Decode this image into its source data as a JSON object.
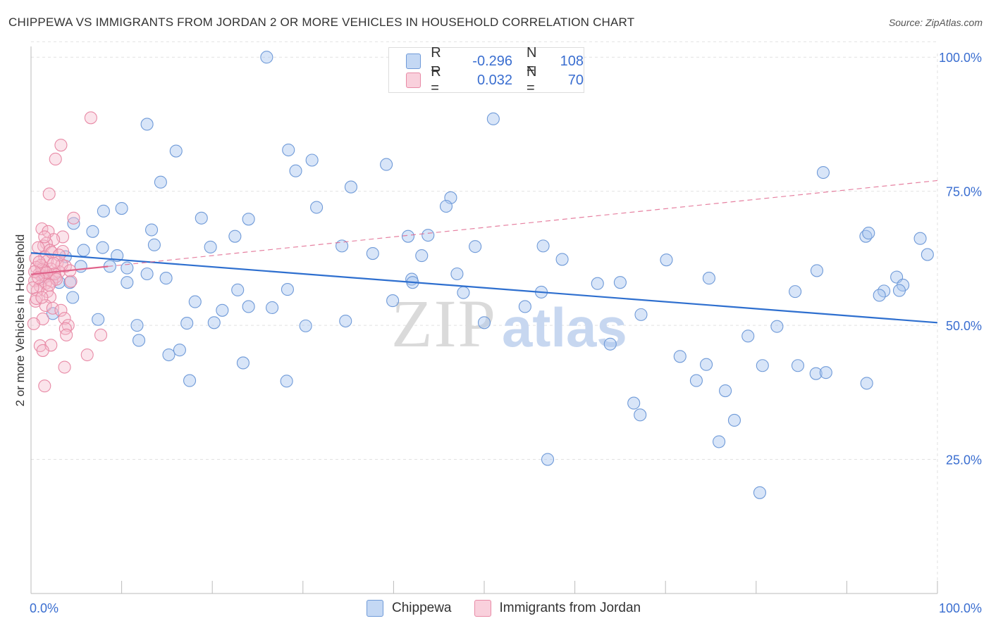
{
  "title": "CHIPPEWA VS IMMIGRANTS FROM JORDAN 2 OR MORE VEHICLES IN HOUSEHOLD CORRELATION CHART",
  "source": "Source: ZipAtlas.com",
  "watermark": {
    "zip": "ZIP",
    "atlas": "atlas"
  },
  "legend": {
    "rows": [
      {
        "r_label": "R =",
        "r_value": "-0.296",
        "n_label": "N =",
        "n_value": "108"
      },
      {
        "r_label": "R =",
        "r_value": "0.032",
        "n_label": "N =",
        "n_value": "70"
      }
    ]
  },
  "colors": {
    "blue_fill": "#a9c6ef",
    "blue_stroke": "#6f9ad8",
    "blue_line": "#2e6fcf",
    "pink_fill": "#f6bccd",
    "pink_stroke": "#e88aa6",
    "pink_line": "#e0628a",
    "axis_text": "#3a6ed0",
    "grid": "#e2e2e2"
  },
  "chart_data": {
    "type": "scatter",
    "title": "CHIPPEWA VS IMMIGRANTS FROM JORDAN 2 OR MORE VEHICLES IN HOUSEHOLD CORRELATION CHART",
    "xlabel": "",
    "ylabel": "2 or more Vehicles in Household",
    "xlim": [
      0,
      100
    ],
    "ylim": [
      0,
      102
    ],
    "x_tick_labels": [
      "0.0%",
      "100.0%"
    ],
    "y_tick_values": [
      25,
      50,
      75,
      100
    ],
    "y_tick_labels": [
      "25.0%",
      "50.0%",
      "75.0%",
      "100.0%"
    ],
    "x_minor_ticks": [
      0,
      10,
      20,
      30,
      40,
      50,
      60,
      70,
      80,
      90,
      100
    ],
    "series": [
      {
        "name": "Chippewa",
        "color": "#a9c6ef",
        "trend": {
          "x": [
            0,
            100
          ],
          "y": [
            63.5,
            50.5
          ],
          "dashed": false
        },
        "points": [
          [
            26,
            100
          ],
          [
            12.8,
            87.5
          ],
          [
            51,
            88.5
          ],
          [
            16,
            82.5
          ],
          [
            28.4,
            82.7
          ],
          [
            31,
            80.8
          ],
          [
            39.2,
            80
          ],
          [
            29.2,
            78.8
          ],
          [
            14.3,
            76.7
          ],
          [
            35.3,
            75.8
          ],
          [
            87.4,
            78.5
          ],
          [
            46.3,
            73.8
          ],
          [
            10,
            71.8
          ],
          [
            8,
            71.3
          ],
          [
            31.5,
            72
          ],
          [
            45.8,
            72.2
          ],
          [
            18.8,
            70
          ],
          [
            24,
            69.8
          ],
          [
            4.7,
            69
          ],
          [
            13.3,
            67.8
          ],
          [
            6.8,
            67.5
          ],
          [
            22.5,
            66.6
          ],
          [
            41.6,
            66.6
          ],
          [
            43.8,
            66.8
          ],
          [
            92.1,
            66.6
          ],
          [
            92.4,
            67.2
          ],
          [
            98.1,
            66.2
          ],
          [
            13.6,
            65
          ],
          [
            19.8,
            64.6
          ],
          [
            34.3,
            64.8
          ],
          [
            49,
            64.7
          ],
          [
            56.5,
            64.8
          ],
          [
            5.8,
            64
          ],
          [
            7.9,
            64.5
          ],
          [
            37.7,
            63.4
          ],
          [
            43.1,
            63
          ],
          [
            98.9,
            63.2
          ],
          [
            9.5,
            63
          ],
          [
            3.8,
            62.8
          ],
          [
            58.6,
            62.3
          ],
          [
            70.1,
            62.2
          ],
          [
            5.5,
            61
          ],
          [
            8.7,
            61
          ],
          [
            10.6,
            60.7
          ],
          [
            1.5,
            59
          ],
          [
            47,
            59.6
          ],
          [
            12.8,
            59.6
          ],
          [
            42,
            58.6
          ],
          [
            74.8,
            58.8
          ],
          [
            42.1,
            58
          ],
          [
            14.9,
            58.8
          ],
          [
            62.5,
            57.8
          ],
          [
            65,
            58
          ],
          [
            95.5,
            59
          ],
          [
            3.1,
            58
          ],
          [
            10.6,
            58
          ],
          [
            96.2,
            57.5
          ],
          [
            4.3,
            58
          ],
          [
            56.3,
            56.2
          ],
          [
            47.7,
            56.1
          ],
          [
            22.8,
            56.6
          ],
          [
            28.3,
            56.7
          ],
          [
            84.3,
            56.3
          ],
          [
            94.1,
            56.4
          ],
          [
            95.8,
            56.5
          ],
          [
            4.6,
            55.2
          ],
          [
            18.1,
            54.4
          ],
          [
            39.9,
            54.6
          ],
          [
            54.5,
            53.5
          ],
          [
            24,
            53.5
          ],
          [
            26.6,
            53.3
          ],
          [
            21.1,
            52.8
          ],
          [
            67.3,
            52
          ],
          [
            2.4,
            52.2
          ],
          [
            7.4,
            51.1
          ],
          [
            17.2,
            50.4
          ],
          [
            20.2,
            50.5
          ],
          [
            34.7,
            50.8
          ],
          [
            50,
            50.5
          ],
          [
            11.7,
            50
          ],
          [
            30.3,
            49.9
          ],
          [
            82.3,
            49.8
          ],
          [
            79.1,
            48
          ],
          [
            11.9,
            47.2
          ],
          [
            63.9,
            46.5
          ],
          [
            16.4,
            45.4
          ],
          [
            15.2,
            44.5
          ],
          [
            71.6,
            44.2
          ],
          [
            80.7,
            42.5
          ],
          [
            23.4,
            43
          ],
          [
            74.5,
            42.7
          ],
          [
            84.6,
            42.5
          ],
          [
            17.5,
            39.7
          ],
          [
            28.2,
            39.6
          ],
          [
            73.4,
            39.7
          ],
          [
            86.6,
            41
          ],
          [
            87.7,
            41.2
          ],
          [
            76.6,
            37.8
          ],
          [
            66.5,
            35.5
          ],
          [
            77.6,
            32.3
          ],
          [
            67.2,
            33.3
          ],
          [
            57,
            25
          ],
          [
            75.9,
            28.3
          ],
          [
            80.4,
            18.8
          ],
          [
            93.6,
            55.6
          ],
          [
            92.2,
            39.2
          ],
          [
            86.7,
            60.2
          ]
        ]
      },
      {
        "name": "Immigrants from Jordan",
        "color": "#f6bccd",
        "trend": {
          "x": [
            0,
            100
          ],
          "y": [
            59.5,
            77
          ],
          "dashed_after": 8.5
        },
        "points": [
          [
            6.6,
            88.7
          ],
          [
            3.3,
            83.6
          ],
          [
            2.7,
            81
          ],
          [
            2,
            74.5
          ],
          [
            4.7,
            70
          ],
          [
            1.2,
            68
          ],
          [
            1.9,
            67.5
          ],
          [
            3.5,
            66.5
          ],
          [
            2.5,
            66
          ],
          [
            1.7,
            65.3
          ],
          [
            1.4,
            64.8
          ],
          [
            0.8,
            64.5
          ],
          [
            2.1,
            64
          ],
          [
            3.5,
            63.8
          ],
          [
            1.5,
            62.8
          ],
          [
            0.5,
            62.5
          ],
          [
            1.8,
            62
          ],
          [
            2.9,
            61.7
          ],
          [
            1.1,
            61.2
          ],
          [
            3.8,
            61
          ],
          [
            0.6,
            60.8
          ],
          [
            2.2,
            60.5
          ],
          [
            1.4,
            60.2
          ],
          [
            3.1,
            60
          ],
          [
            0.9,
            59.6
          ],
          [
            1.9,
            59.2
          ],
          [
            2.7,
            59
          ],
          [
            1.3,
            58.7
          ],
          [
            0.4,
            58.3
          ],
          [
            2.3,
            58.2
          ],
          [
            4.4,
            58.2
          ],
          [
            1.6,
            57.8
          ],
          [
            1,
            57.3
          ],
          [
            0.7,
            56.5
          ],
          [
            1.8,
            56.3
          ],
          [
            2.1,
            55.3
          ],
          [
            0.5,
            54.5
          ],
          [
            1.6,
            53.7
          ],
          [
            2.4,
            53.2
          ],
          [
            3.3,
            52.8
          ],
          [
            1.3,
            51.2
          ],
          [
            3.7,
            51.3
          ],
          [
            0.3,
            50.3
          ],
          [
            4.1,
            50
          ],
          [
            3.8,
            49.4
          ],
          [
            3.9,
            48.2
          ],
          [
            7.7,
            48.2
          ],
          [
            1,
            46.2
          ],
          [
            2.2,
            46.3
          ],
          [
            1.3,
            45.3
          ],
          [
            6.2,
            44.5
          ],
          [
            3.7,
            42.2
          ],
          [
            1.5,
            38.7
          ],
          [
            0.2,
            57
          ],
          [
            0.6,
            55
          ],
          [
            2.6,
            59.6
          ],
          [
            1.2,
            60.4
          ],
          [
            3.4,
            61.3
          ],
          [
            2.3,
            63.6
          ],
          [
            1.5,
            66.5
          ],
          [
            0.9,
            61.8
          ],
          [
            2.8,
            58.6
          ],
          [
            1.7,
            59.8
          ],
          [
            0.4,
            60
          ],
          [
            4.3,
            60.2
          ],
          [
            2,
            57.5
          ],
          [
            1.2,
            55.2
          ],
          [
            3.1,
            63.1
          ],
          [
            0.8,
            58.9
          ],
          [
            2.5,
            61.6
          ]
        ]
      }
    ]
  },
  "bottom_legend": {
    "items": [
      "Chippewa",
      "Immigrants from Jordan"
    ]
  }
}
